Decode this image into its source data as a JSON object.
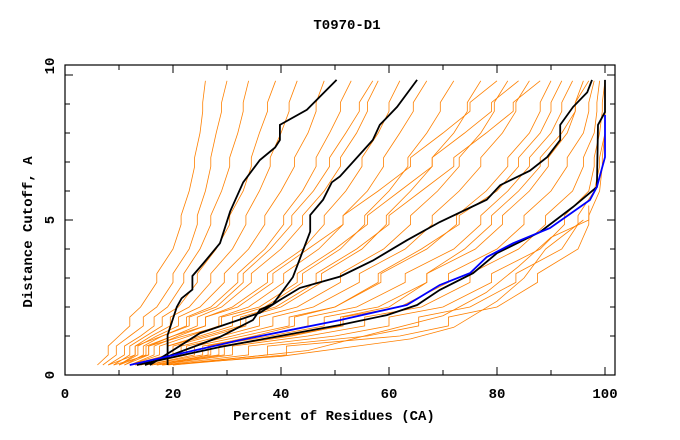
{
  "chart_data": {
    "type": "line",
    "title": "T0970-D1",
    "xlabel": "Percent of Residues (CA)",
    "ylabel": "Distance Cutoff, A",
    "xlim": [
      0,
      100
    ],
    "ylim": [
      0,
      10
    ],
    "xticks": [
      "0",
      "20",
      "40",
      "60",
      "80",
      "100"
    ],
    "yticks": [
      "0",
      "5",
      "10"
    ],
    "grid": false,
    "colors": {
      "models": "#ff8000",
      "highlight": "#000000",
      "reference": "#0000ff"
    },
    "orange_y_levels": [
      0,
      1,
      2,
      4,
      6,
      8,
      9.8
    ],
    "orange_series_x": [
      [
        6,
        10,
        14,
        20,
        23,
        25,
        26
      ],
      [
        7,
        12,
        17,
        23,
        26,
        28,
        30
      ],
      [
        8,
        14,
        19,
        25,
        29,
        32,
        34
      ],
      [
        9,
        15,
        21,
        28,
        33,
        36,
        39
      ],
      [
        10,
        16,
        23,
        31,
        36,
        40,
        43
      ],
      [
        10,
        17,
        25,
        34,
        40,
        45,
        48
      ],
      [
        11,
        18,
        27,
        37,
        44,
        49,
        53
      ],
      [
        11,
        20,
        29,
        40,
        48,
        54,
        58
      ],
      [
        12,
        21,
        31,
        44,
        52,
        58,
        62
      ],
      [
        12,
        23,
        34,
        47,
        56,
        62,
        67
      ],
      [
        13,
        25,
        37,
        51,
        60,
        67,
        72
      ],
      [
        13,
        27,
        40,
        55,
        64,
        72,
        77
      ],
      [
        14,
        29,
        43,
        59,
        69,
        77,
        82
      ],
      [
        14,
        31,
        46,
        63,
        73,
        81,
        86
      ],
      [
        15,
        33,
        50,
        67,
        78,
        86,
        90
      ],
      [
        15,
        36,
        54,
        72,
        82,
        90,
        94
      ],
      [
        16,
        38,
        58,
        76,
        86,
        93,
        96
      ],
      [
        16,
        41,
        62,
        80,
        90,
        96,
        98
      ],
      [
        17,
        45,
        66,
        84,
        94,
        98,
        99
      ],
      [
        18,
        50,
        70,
        88,
        97,
        99,
        100
      ],
      [
        19,
        56,
        75,
        92,
        98,
        100,
        100
      ],
      [
        20,
        62,
        80,
        95,
        99,
        100,
        100
      ],
      [
        18,
        35,
        50,
        66,
        80,
        88,
        92
      ],
      [
        10,
        20,
        32,
        45,
        58,
        70,
        80
      ],
      [
        8,
        18,
        28,
        38,
        46,
        52,
        57
      ],
      [
        9,
        22,
        36,
        50,
        62,
        74,
        84
      ],
      [
        17,
        42,
        60,
        74,
        84,
        92,
        97
      ],
      [
        12,
        26,
        39,
        54,
        66,
        78,
        88
      ]
    ],
    "orange_extra": [
      [
        [
          18,
          0
        ],
        [
          40,
          0.3
        ],
        [
          64,
          0.9
        ],
        [
          72,
          1.3
        ],
        [
          80,
          2.2
        ],
        [
          85,
          3.0
        ],
        [
          89,
          4.0
        ],
        [
          96,
          5.0
        ]
      ],
      [
        [
          20,
          0
        ],
        [
          45,
          0.5
        ],
        [
          70,
          1.7
        ],
        [
          78,
          2.5
        ],
        [
          84,
          3.4
        ],
        [
          90,
          4.4
        ],
        [
          97,
          5.0
        ],
        [
          97,
          5.5
        ]
      ]
    ],
    "black_series": [
      [
        [
          19,
          0
        ],
        [
          19,
          1.03
        ],
        [
          20.7,
          2.0
        ],
        [
          21.6,
          2.3
        ],
        [
          23.6,
          2.6
        ],
        [
          23.6,
          3.07
        ],
        [
          25.6,
          3.5
        ],
        [
          28.7,
          4.2
        ],
        [
          30.6,
          5.3
        ],
        [
          33,
          6.3
        ],
        [
          36.1,
          7.07
        ],
        [
          38.9,
          7.5
        ],
        [
          39.8,
          7.76
        ],
        [
          39.8,
          8.28
        ],
        [
          44.8,
          8.8
        ],
        [
          50.3,
          9.83
        ]
      ],
      [
        [
          14.8,
          0
        ],
        [
          28.7,
          0.97
        ],
        [
          34.8,
          1.55
        ],
        [
          36.1,
          1.9
        ],
        [
          38.5,
          2.1
        ],
        [
          42.2,
          3.03
        ],
        [
          45.4,
          4.6
        ],
        [
          45.4,
          5.17
        ],
        [
          47.8,
          5.7
        ],
        [
          49.4,
          6.3
        ],
        [
          50.9,
          6.5
        ],
        [
          57,
          7.76
        ],
        [
          58.3,
          8.28
        ],
        [
          61.5,
          8.9
        ],
        [
          65.2,
          9.83
        ]
      ],
      [
        [
          15.7,
          0
        ],
        [
          25,
          1.1
        ],
        [
          36.1,
          1.8
        ],
        [
          39.8,
          2.24
        ],
        [
          43.5,
          2.66
        ],
        [
          50.9,
          3.05
        ],
        [
          57,
          3.6
        ],
        [
          63.3,
          4.3
        ],
        [
          69.4,
          4.93
        ],
        [
          78.1,
          5.7
        ],
        [
          80.6,
          6.2
        ],
        [
          86.1,
          6.7
        ],
        [
          89.3,
          7.17
        ],
        [
          91.7,
          7.76
        ],
        [
          91.7,
          8.28
        ],
        [
          94.1,
          8.9
        ],
        [
          96.7,
          9.4
        ],
        [
          97.6,
          9.83
        ]
      ],
      [
        [
          13.3,
          0
        ],
        [
          28.7,
          0.62
        ],
        [
          50.9,
          1.38
        ],
        [
          59.6,
          1.72
        ],
        [
          65.2,
          2.07
        ],
        [
          69.4,
          2.59
        ],
        [
          75.6,
          3.17
        ],
        [
          80,
          3.86
        ],
        [
          88,
          4.59
        ],
        [
          94.1,
          5.45
        ],
        [
          98.5,
          6.14
        ],
        [
          98.7,
          8.28
        ],
        [
          100,
          8.72
        ],
        [
          100,
          9.83
        ]
      ]
    ],
    "blue_series": [
      [
        12,
        0
      ],
      [
        32.4,
        0.86
      ],
      [
        50.9,
        1.55
      ],
      [
        63.3,
        2.07
      ],
      [
        69.4,
        2.76
      ],
      [
        75,
        3.17
      ],
      [
        78.1,
        3.72
      ],
      [
        83,
        4.2
      ],
      [
        89.8,
        4.72
      ],
      [
        97.2,
        5.69
      ],
      [
        98.5,
        6.14
      ],
      [
        100,
        7.17
      ],
      [
        100,
        8.62
      ]
    ]
  }
}
